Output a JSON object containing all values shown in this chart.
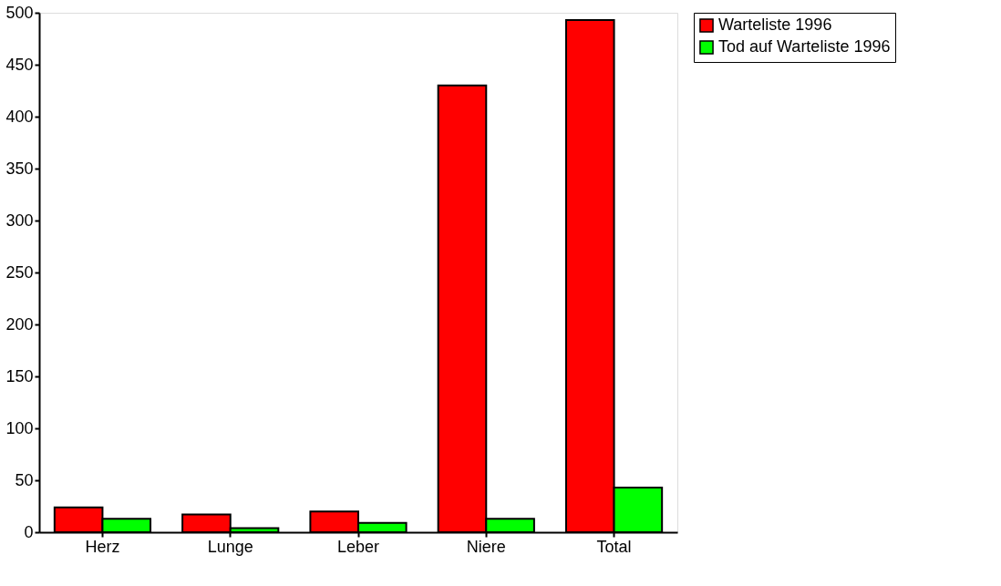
{
  "chart_data": {
    "type": "bar",
    "categories": [
      "Herz",
      "Lunge",
      "Leber",
      "Niere",
      "Total"
    ],
    "series": [
      {
        "name": "Warteliste 1996",
        "color": "#ff0000",
        "values": [
          24,
          17,
          20,
          430,
          493
        ]
      },
      {
        "name": "Tod auf Warteliste 1996",
        "color": "#00ff00",
        "values": [
          13,
          4,
          9,
          13,
          43
        ]
      }
    ],
    "ylim": [
      0,
      500
    ],
    "yticks": [
      0,
      50,
      100,
      150,
      200,
      250,
      300,
      350,
      400,
      450,
      500
    ],
    "grid": false,
    "legend": "top right"
  }
}
